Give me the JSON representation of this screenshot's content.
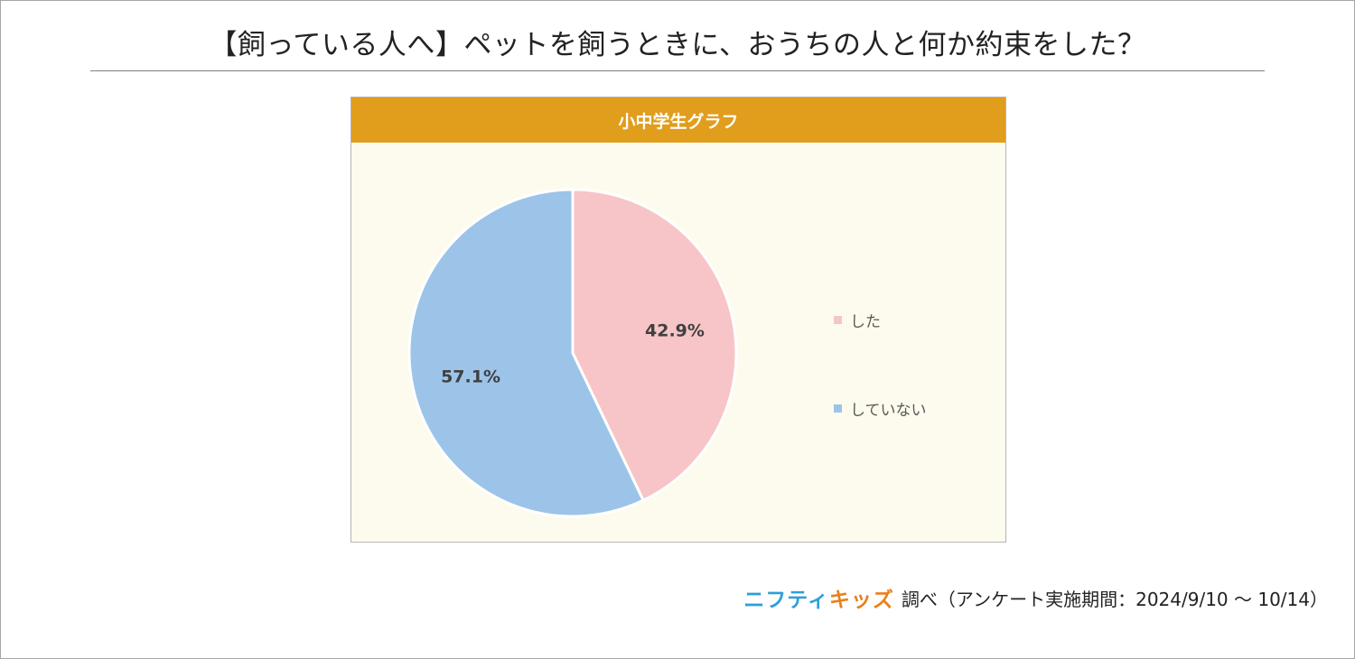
{
  "title": "【飼っている人へ】ペットを飼うときに、おうちの人と何か約束をした？",
  "chart_data": {
    "type": "pie",
    "title": "小中学生グラフ",
    "slices": [
      {
        "label": "した",
        "value": 42.9,
        "display": "42.9%",
        "color": "#f7c5c7"
      },
      {
        "label": "していない",
        "value": 57.1,
        "display": "57.1%",
        "color": "#9cc4e8"
      }
    ],
    "start_angle_deg": 0,
    "direction": "clockwise",
    "legend_position": "right"
  },
  "colors": {
    "header": "#e19d1c",
    "panel_background": "#fdfbed"
  },
  "footer": {
    "brand_part1": "ニフティ",
    "brand_part2": "キッズ",
    "note": "調べ（アンケート実施期間：2024/9/10 ～ 10/14）"
  }
}
